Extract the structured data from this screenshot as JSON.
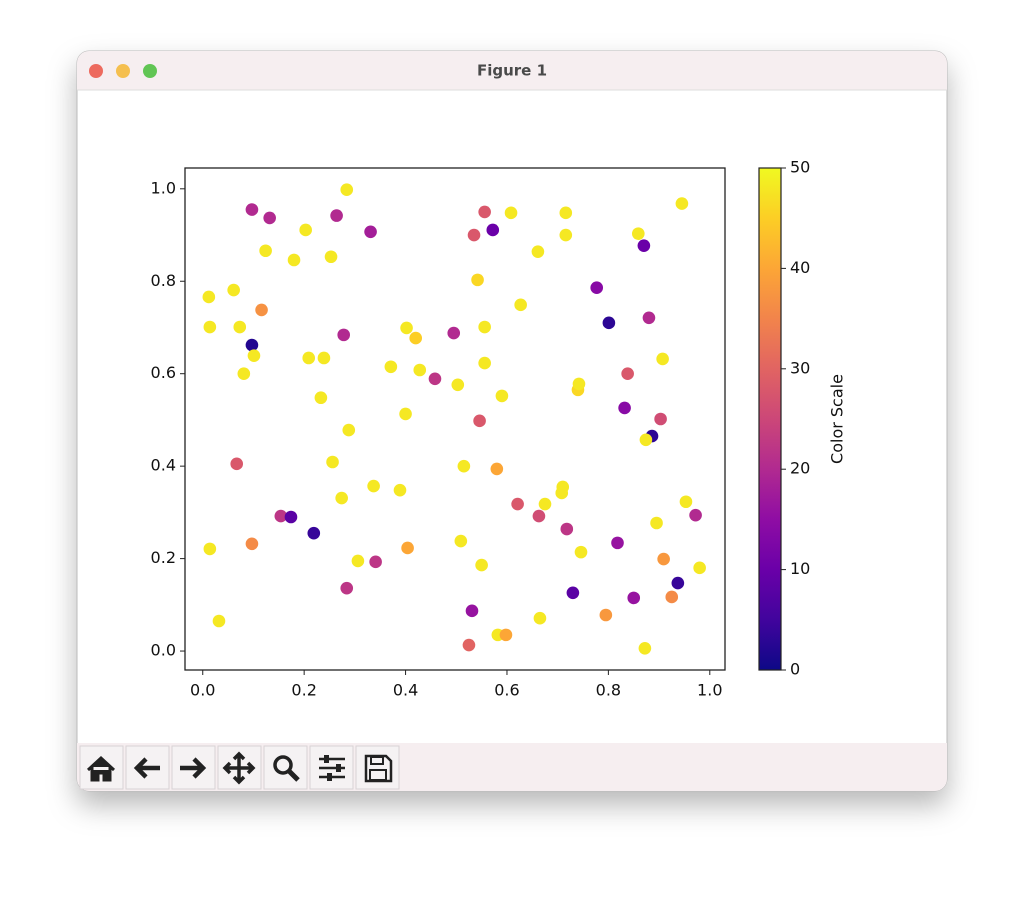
{
  "window": {
    "title": "Figure 1"
  },
  "chart_data": {
    "type": "scatter",
    "colormap": "plasma",
    "xlim": [
      -0.035,
      1.03
    ],
    "ylim": [
      -0.041,
      1.045
    ],
    "xticks": [
      {
        "value": 0,
        "label": "0.0"
      },
      0.2,
      0.4,
      0.6,
      0.8,
      {
        "value": 1,
        "label": "1.0"
      }
    ],
    "yticks": [
      {
        "value": 0,
        "label": "0.0"
      },
      0.2,
      0.4,
      0.6,
      0.8,
      {
        "value": 1,
        "label": "1.0"
      }
    ],
    "x": [
      0.284,
      0.097,
      0.132,
      0.264,
      0.331,
      0.203,
      0.124,
      0.18,
      0.253,
      0.012,
      0.061,
      0.116,
      0.014,
      0.073,
      0.278,
      0.097,
      0.101,
      0.081,
      0.209,
      0.239,
      0.233,
      0.288,
      0.256,
      0.274,
      0.067,
      0.154,
      0.174,
      0.219,
      0.014,
      0.097,
      0.032,
      0.284,
      0.306,
      0.341,
      0.337,
      0.389,
      0.371,
      0.402,
      0.42,
      0.428,
      0.4,
      0.458,
      0.495,
      0.503,
      0.515,
      0.509,
      0.404,
      0.531,
      0.525,
      0.582,
      0.598,
      0.535,
      0.556,
      0.572,
      0.608,
      0.542,
      0.556,
      0.556,
      0.627,
      0.59,
      0.546,
      0.58,
      0.55,
      0.621,
      0.661,
      0.716,
      0.716,
      0.675,
      0.663,
      0.71,
      0.708,
      0.718,
      0.665,
      0.73,
      0.74,
      0.742,
      0.746,
      0.777,
      0.801,
      0.838,
      0.832,
      0.818,
      0.795,
      0.85,
      0.859,
      0.87,
      0.88,
      0.907,
      0.903,
      0.886,
      0.874,
      0.895,
      0.909,
      0.925,
      0.937,
      0.872,
      0.945,
      0.953,
      0.972,
      0.98
    ],
    "y": [
      0.998,
      0.955,
      0.937,
      0.942,
      0.907,
      0.911,
      0.866,
      0.846,
      0.853,
      0.766,
      0.781,
      0.738,
      0.701,
      0.701,
      0.684,
      0.662,
      0.639,
      0.6,
      0.634,
      0.634,
      0.548,
      0.478,
      0.409,
      0.331,
      0.405,
      0.292,
      0.29,
      0.255,
      0.221,
      0.232,
      0.065,
      0.136,
      0.195,
      0.193,
      0.357,
      0.348,
      0.615,
      0.699,
      0.677,
      0.608,
      0.513,
      0.589,
      0.688,
      0.576,
      0.4,
      0.238,
      0.223,
      0.087,
      0.013,
      0.035,
      0.035,
      0.9,
      0.95,
      0.911,
      0.948,
      0.803,
      0.701,
      0.623,
      0.749,
      0.552,
      0.498,
      0.394,
      0.186,
      0.318,
      0.864,
      0.948,
      0.9,
      0.318,
      0.292,
      0.355,
      0.342,
      0.264,
      0.071,
      0.126,
      0.565,
      0.578,
      0.214,
      0.786,
      0.71,
      0.6,
      0.526,
      0.234,
      0.078,
      0.115,
      0.903,
      0.877,
      0.721,
      0.632,
      0.502,
      0.465,
      0.457,
      0.277,
      0.199,
      0.117,
      0.147,
      0.006,
      0.968,
      0.323,
      0.294,
      0.18
    ],
    "c": [
      48,
      20,
      20,
      20,
      18,
      48,
      48,
      48,
      48,
      48,
      48,
      37,
      48,
      48,
      20,
      2,
      48,
      48,
      48,
      48,
      48,
      48,
      48,
      48,
      28,
      22,
      8,
      4,
      48,
      36,
      48,
      22,
      48,
      22,
      48,
      48,
      48,
      48,
      45,
      48,
      48,
      22,
      20,
      48,
      48,
      48,
      40,
      16,
      30,
      48,
      40,
      28,
      28,
      10,
      48,
      46,
      48,
      48,
      48,
      48,
      28,
      40,
      48,
      28,
      48,
      48,
      48,
      48,
      26,
      48,
      48,
      22,
      48,
      8,
      46,
      48,
      48,
      14,
      3,
      28,
      14,
      16,
      38,
      16,
      48,
      10,
      20,
      48,
      26,
      3,
      48,
      48,
      38,
      36,
      4,
      48,
      48,
      48,
      20,
      48
    ],
    "colorbar": {
      "label": "Color Scale",
      "lim": [
        0,
        50
      ],
      "ticks": [
        0,
        10,
        20,
        30,
        40,
        50
      ]
    }
  }
}
